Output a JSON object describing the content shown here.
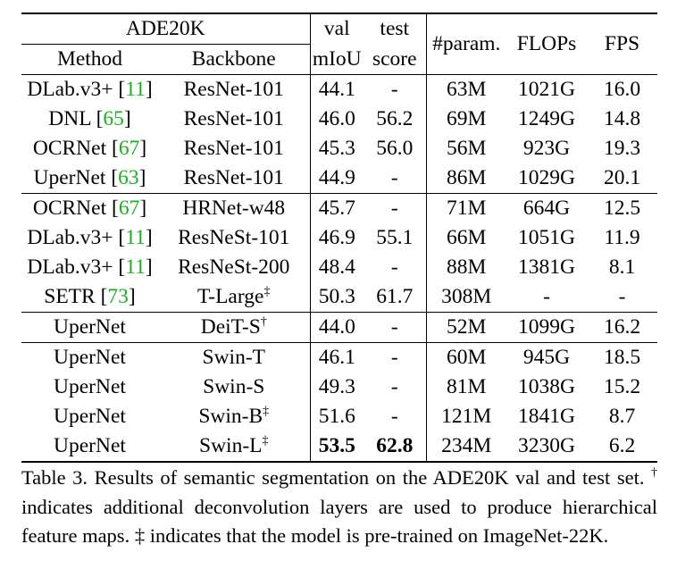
{
  "table": {
    "dataset_header": "ADE20K",
    "headers": {
      "method": "Method",
      "backbone": "Backbone",
      "val_top": "val",
      "val_bottom": "mIoU",
      "test_top": "test",
      "test_bottom": "score",
      "params": "#param.",
      "flops": "FLOPs",
      "fps": "FPS"
    },
    "rows": [
      {
        "method": "DLab.v3+",
        "ref": "11",
        "backbone": "ResNet-101",
        "mark": "",
        "val": "44.1",
        "test": "-",
        "params": "63M",
        "flops": "1021G",
        "fps": "16.0"
      },
      {
        "method": "DNL",
        "ref": "65",
        "backbone": "ResNet-101",
        "mark": "",
        "val": "46.0",
        "test": "56.2",
        "params": "69M",
        "flops": "1249G",
        "fps": "14.8"
      },
      {
        "method": "OCRNet",
        "ref": "67",
        "backbone": "ResNet-101",
        "mark": "",
        "val": "45.3",
        "test": "56.0",
        "params": "56M",
        "flops": "923G",
        "fps": "19.3"
      },
      {
        "method": "UperNet",
        "ref": "63",
        "backbone": "ResNet-101",
        "mark": "",
        "val": "44.9",
        "test": "-",
        "params": "86M",
        "flops": "1029G",
        "fps": "20.1"
      },
      {
        "method": "OCRNet",
        "ref": "67",
        "backbone": "HRNet-w48",
        "mark": "",
        "val": "45.7",
        "test": "-",
        "params": "71M",
        "flops": "664G",
        "fps": "12.5"
      },
      {
        "method": "DLab.v3+",
        "ref": "11",
        "backbone": "ResNeSt-101",
        "mark": "",
        "val": "46.9",
        "test": "55.1",
        "params": "66M",
        "flops": "1051G",
        "fps": "11.9"
      },
      {
        "method": "DLab.v3+",
        "ref": "11",
        "backbone": "ResNeSt-200",
        "mark": "",
        "val": "48.4",
        "test": "-",
        "params": "88M",
        "flops": "1381G",
        "fps": "8.1"
      },
      {
        "method": "SETR",
        "ref": "73",
        "backbone": "T-Large",
        "mark": "‡",
        "val": "50.3",
        "test": "61.7",
        "params": "308M",
        "flops": "-",
        "fps": "-"
      },
      {
        "method": "UperNet",
        "ref": "",
        "backbone": "DeiT-S",
        "mark": "†",
        "val": "44.0",
        "test": "-",
        "params": "52M",
        "flops": "1099G",
        "fps": "16.2"
      },
      {
        "method": "UperNet",
        "ref": "",
        "backbone": "Swin-T",
        "mark": "",
        "val": "46.1",
        "test": "-",
        "params": "60M",
        "flops": "945G",
        "fps": "18.5"
      },
      {
        "method": "UperNet",
        "ref": "",
        "backbone": "Swin-S",
        "mark": "",
        "val": "49.3",
        "test": "-",
        "params": "81M",
        "flops": "1038G",
        "fps": "15.2"
      },
      {
        "method": "UperNet",
        "ref": "",
        "backbone": "Swin-B",
        "mark": "‡",
        "val": "51.6",
        "test": "-",
        "params": "121M",
        "flops": "1841G",
        "fps": "8.7"
      },
      {
        "method": "UperNet",
        "ref": "",
        "backbone": "Swin-L",
        "mark": "‡",
        "val": "53.5",
        "test": "62.8",
        "params": "234M",
        "flops": "3230G",
        "fps": "6.2"
      }
    ]
  },
  "caption": {
    "part1": "Table 3. Results of semantic segmentation on the ADE20K val and test set. ",
    "dagger": "†",
    "part2": " indicates additional deconvolution layers are used to produce hierarchical feature maps. ",
    "ddagger": "‡",
    "part3": " indicates that the model is pre-trained on ImageNet-22K."
  },
  "colors": {
    "citation": "#17b31d",
    "text": "#000000",
    "background": "#ffffff"
  }
}
